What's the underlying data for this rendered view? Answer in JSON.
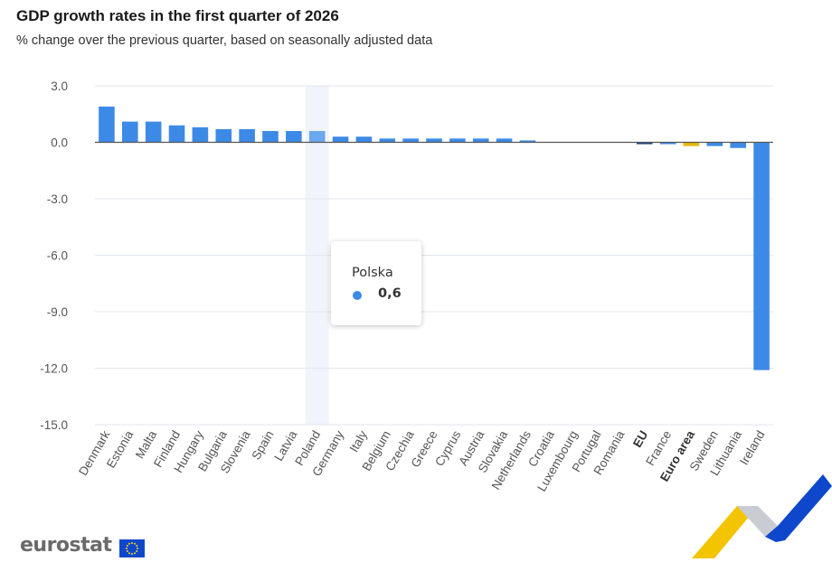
{
  "chart_data": {
    "type": "bar",
    "title": "GDP growth rates in the first quarter of 2026",
    "subtitle": "% change over the previous quarter, based on seasonally adjusted data",
    "categories": [
      "Denmark",
      "Estonia",
      "Malta",
      "Finland",
      "Hungary",
      "Bulgaria",
      "Slovenia",
      "Spain",
      "Latvia",
      "Poland",
      "Germany",
      "Italy",
      "Belgium",
      "Czechia",
      "Greece",
      "Cyprus",
      "Austria",
      "Slovakia",
      "Netherlands",
      "Croatia",
      "Luxembourg",
      "Portugal",
      "Romania",
      "EU",
      "France",
      "Euro area",
      "Sweden",
      "Lithuania",
      "Ireland"
    ],
    "bold_categories": [
      "EU",
      "Euro area"
    ],
    "values": [
      1.9,
      1.1,
      1.1,
      0.9,
      0.8,
      0.7,
      0.7,
      0.6,
      0.6,
      0.6,
      0.3,
      0.3,
      0.2,
      0.2,
      0.2,
      0.2,
      0.2,
      0.2,
      0.1,
      0.0,
      0.0,
      0.0,
      0.0,
      -0.1,
      -0.1,
      -0.2,
      -0.2,
      -0.3,
      -12.1
    ],
    "bar_colors": {
      "default": "#3d8ae6",
      "highlight": "#6aa8ef",
      "EU": "#1f3f86",
      "Euro area": "#e6b800"
    },
    "highlighted_category": "Poland",
    "yticks": [
      3.0,
      0.0,
      -3.0,
      -6.0,
      -9.0,
      -12.0,
      -15.0
    ],
    "ytick_labels": [
      "3.0",
      "0.0",
      "-3.0",
      "-6.0",
      "-9.0",
      "-12.0",
      "-15.0"
    ],
    "ylim": [
      -15,
      3
    ],
    "grid": true,
    "xlabel": "",
    "ylabel": ""
  },
  "tooltip": {
    "name": "Polska",
    "value": "0,6",
    "color": "#3d8ae6"
  },
  "logo": {
    "text": "eurostat"
  }
}
